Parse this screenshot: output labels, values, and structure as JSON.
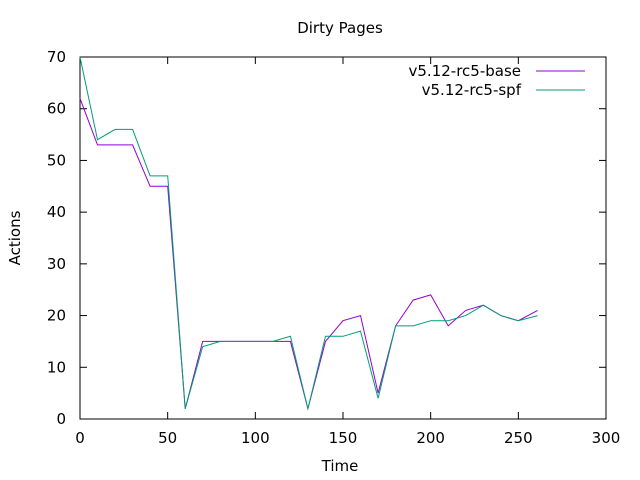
{
  "chart_data": {
    "type": "line",
    "title": "Dirty Pages",
    "xlabel": "Time",
    "ylabel": "Actions",
    "xlim": [
      0,
      300
    ],
    "ylim": [
      0,
      70
    ],
    "xticks": [
      0,
      50,
      100,
      150,
      200,
      250,
      300
    ],
    "yticks": [
      0,
      10,
      20,
      30,
      40,
      50,
      60,
      70
    ],
    "grid": false,
    "legend": "top-right",
    "series": [
      {
        "name": "v5.12-rc5-base",
        "color": "#9400d3",
        "x": [
          0,
          10,
          20,
          30,
          40,
          50,
          60,
          70,
          80,
          90,
          100,
          110,
          120,
          130,
          140,
          150,
          160,
          170,
          180,
          190,
          200,
          210,
          220,
          230,
          240,
          250,
          261
        ],
        "y": [
          62,
          53,
          53,
          53,
          45,
          45,
          2,
          15,
          15,
          15,
          15,
          15,
          15,
          2,
          15,
          19,
          20,
          5,
          18,
          23,
          24,
          18,
          21,
          22,
          20,
          19,
          21
        ]
      },
      {
        "name": "v5.12-rc5-spf",
        "color": "#009e73",
        "x": [
          0,
          10,
          20,
          30,
          40,
          50,
          60,
          70,
          80,
          90,
          100,
          110,
          120,
          130,
          140,
          150,
          160,
          170,
          180,
          190,
          200,
          210,
          220,
          230,
          240,
          250,
          261
        ],
        "y": [
          70,
          54,
          56,
          56,
          47,
          47,
          2,
          14,
          15,
          15,
          15,
          15,
          16,
          2,
          16,
          16,
          17,
          4,
          18,
          18,
          19,
          19,
          20,
          22,
          20,
          19,
          20
        ]
      }
    ]
  }
}
